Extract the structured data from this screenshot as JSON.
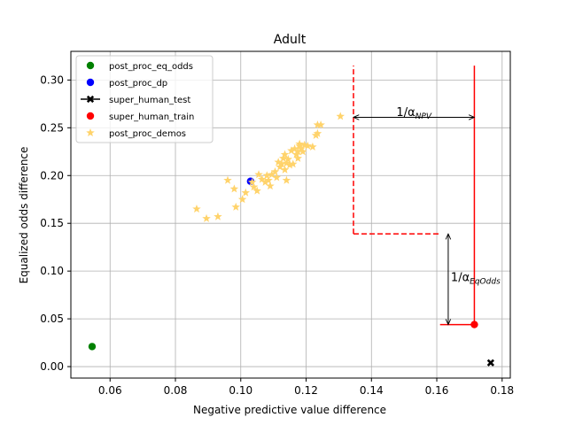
{
  "chart_data": {
    "type": "scatter",
    "title": "Adult",
    "xlabel": "Negative predictive value difference",
    "ylabel": "Equalized odds difference",
    "xlim": [
      0.048,
      0.1825
    ],
    "ylim": [
      -0.012,
      0.33
    ],
    "xticks": [
      0.06,
      0.08,
      0.1,
      0.12,
      0.14,
      0.16,
      0.18
    ],
    "xtick_labels": [
      "0.06",
      "0.08",
      "0.10",
      "0.12",
      "0.14",
      "0.16",
      "0.18"
    ],
    "yticks": [
      0.0,
      0.05,
      0.1,
      0.15,
      0.2,
      0.25,
      0.3
    ],
    "ytick_labels": [
      "0.00",
      "0.05",
      "0.10",
      "0.15",
      "0.20",
      "0.25",
      "0.30"
    ],
    "grid": true,
    "legend_position": "top-left",
    "legend": [
      {
        "label": "post_proc_eq_odds",
        "marker": "circle",
        "color": "#008000"
      },
      {
        "label": "post_proc_dp",
        "marker": "circle",
        "color": "#0000ff"
      },
      {
        "label": "super_human_test",
        "marker": "x-line",
        "color": "#000000"
      },
      {
        "label": "super_human_train",
        "marker": "circle",
        "color": "#ff0000"
      },
      {
        "label": "post_proc_demos",
        "marker": "star",
        "color": "#ffd36b"
      }
    ],
    "series": [
      {
        "name": "post_proc_eq_odds",
        "marker": "circle",
        "color": "#008000",
        "points": [
          [
            0.0545,
            0.021
          ]
        ]
      },
      {
        "name": "post_proc_dp",
        "marker": "circle",
        "color": "#0000ff",
        "points": [
          [
            0.103,
            0.194
          ]
        ]
      },
      {
        "name": "super_human_test",
        "marker": "x",
        "color": "#000000",
        "points": [
          [
            0.1765,
            0.004
          ]
        ]
      },
      {
        "name": "super_human_train",
        "marker": "circle",
        "color": "#ff0000",
        "points": [
          [
            0.1715,
            0.044
          ]
        ]
      },
      {
        "name": "post_proc_demos",
        "marker": "star",
        "color": "#ffd36b",
        "points": [
          [
            0.0865,
            0.165
          ],
          [
            0.0895,
            0.155
          ],
          [
            0.093,
            0.157
          ],
          [
            0.096,
            0.195
          ],
          [
            0.098,
            0.186
          ],
          [
            0.0985,
            0.167
          ],
          [
            0.1005,
            0.175
          ],
          [
            0.1015,
            0.182
          ],
          [
            0.1035,
            0.193
          ],
          [
            0.104,
            0.188
          ],
          [
            0.105,
            0.184
          ],
          [
            0.1055,
            0.201
          ],
          [
            0.1065,
            0.196
          ],
          [
            0.1075,
            0.193
          ],
          [
            0.108,
            0.2
          ],
          [
            0.1085,
            0.195
          ],
          [
            0.109,
            0.189
          ],
          [
            0.1095,
            0.201
          ],
          [
            0.1105,
            0.204
          ],
          [
            0.111,
            0.198
          ],
          [
            0.1115,
            0.214
          ],
          [
            0.112,
            0.209
          ],
          [
            0.1125,
            0.212
          ],
          [
            0.113,
            0.218
          ],
          [
            0.1135,
            0.222
          ],
          [
            0.1135,
            0.206
          ],
          [
            0.114,
            0.213
          ],
          [
            0.114,
            0.195
          ],
          [
            0.1145,
            0.217
          ],
          [
            0.115,
            0.211
          ],
          [
            0.1155,
            0.226
          ],
          [
            0.116,
            0.212
          ],
          [
            0.1165,
            0.228
          ],
          [
            0.117,
            0.222
          ],
          [
            0.1175,
            0.225
          ],
          [
            0.1175,
            0.218
          ],
          [
            0.118,
            0.231
          ],
          [
            0.118,
            0.233
          ],
          [
            0.1185,
            0.228
          ],
          [
            0.119,
            0.225
          ],
          [
            0.1195,
            0.232
          ],
          [
            0.1205,
            0.231
          ],
          [
            0.122,
            0.23
          ],
          [
            0.123,
            0.242
          ],
          [
            0.1235,
            0.244
          ],
          [
            0.1235,
            0.253
          ],
          [
            0.1245,
            0.253
          ],
          [
            0.1305,
            0.262
          ]
        ]
      }
    ],
    "annotations": [
      {
        "type": "hline",
        "style": "dashed",
        "color": "#ff0000",
        "x": [
          0.1345,
          0.161
        ],
        "y": 0.139
      },
      {
        "type": "vline",
        "style": "dashed",
        "color": "#ff0000",
        "x": 0.1345,
        "y": [
          0.139,
          0.315
        ]
      },
      {
        "type": "hline",
        "style": "solid",
        "color": "#ff0000",
        "x": [
          0.161,
          0.1715
        ],
        "y": 0.044
      },
      {
        "type": "vline",
        "style": "solid",
        "color": "#ff0000",
        "x": 0.1715,
        "y": [
          0.044,
          0.315
        ]
      },
      {
        "type": "double-arrow",
        "color": "#000000",
        "from": [
          0.1345,
          0.261
        ],
        "to": [
          0.1715,
          0.261
        ],
        "label": "1/α",
        "subscript": "NPV",
        "label_at": [
          0.153,
          0.266
        ]
      },
      {
        "type": "double-arrow",
        "color": "#000000",
        "from": [
          0.1635,
          0.139
        ],
        "to": [
          0.1635,
          0.044
        ],
        "label": "1/α",
        "subscript": "EqOdds",
        "label_at": [
          0.1635,
          0.093
        ]
      }
    ]
  }
}
